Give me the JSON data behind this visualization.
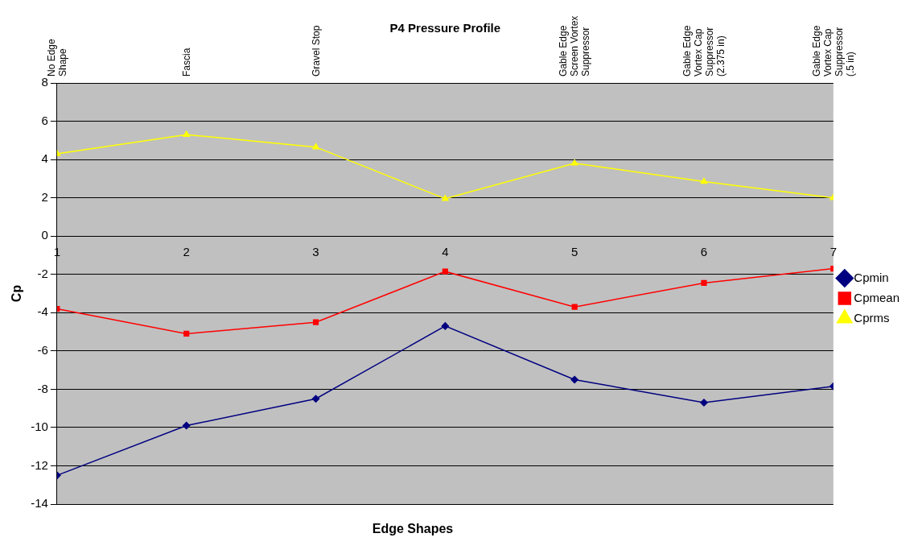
{
  "chart_data": {
    "type": "line",
    "title": "P4 Pressure Profile",
    "xlabel": "Edge Shapes",
    "ylabel": "Cp",
    "annotations": [
      "No Edge\nShape",
      "Fascia",
      "Gravel Stop",
      "Gable Edge\nScreen Vortex\nSuppressor",
      "Gable Edge\nVortex Cap\nSuppressor\n(2.375 in)",
      "Gable Edge\nVortex Cap\nSuppressor\n(.5 in)"
    ],
    "x": [
      1,
      2,
      3,
      4,
      5,
      6,
      7
    ],
    "xlim": [
      1,
      7
    ],
    "xticks": [
      1,
      2,
      3,
      4,
      5,
      6,
      7
    ],
    "ylim": [
      -14,
      8
    ],
    "yticks": [
      -14,
      -12,
      -10,
      -8,
      -6,
      -4,
      -2,
      0,
      2,
      4,
      6,
      8
    ],
    "grid": "y",
    "legend": "right",
    "series": [
      {
        "name": "Cpmin",
        "color": "#000080",
        "marker": "diamond",
        "values": [
          -12.5,
          -9.9,
          -8.5,
          -4.7,
          -7.5,
          -8.7,
          -7.85
        ]
      },
      {
        "name": "Cpmean",
        "color": "#ff0000",
        "marker": "square",
        "values": [
          -3.8,
          -5.1,
          -4.5,
          -1.85,
          -3.7,
          -2.45,
          -1.7
        ]
      },
      {
        "name": "Cprms",
        "color": "#ffff00",
        "marker": "triangle",
        "values": [
          4.3,
          5.3,
          4.65,
          1.95,
          3.8,
          2.85,
          2.0
        ]
      }
    ]
  }
}
